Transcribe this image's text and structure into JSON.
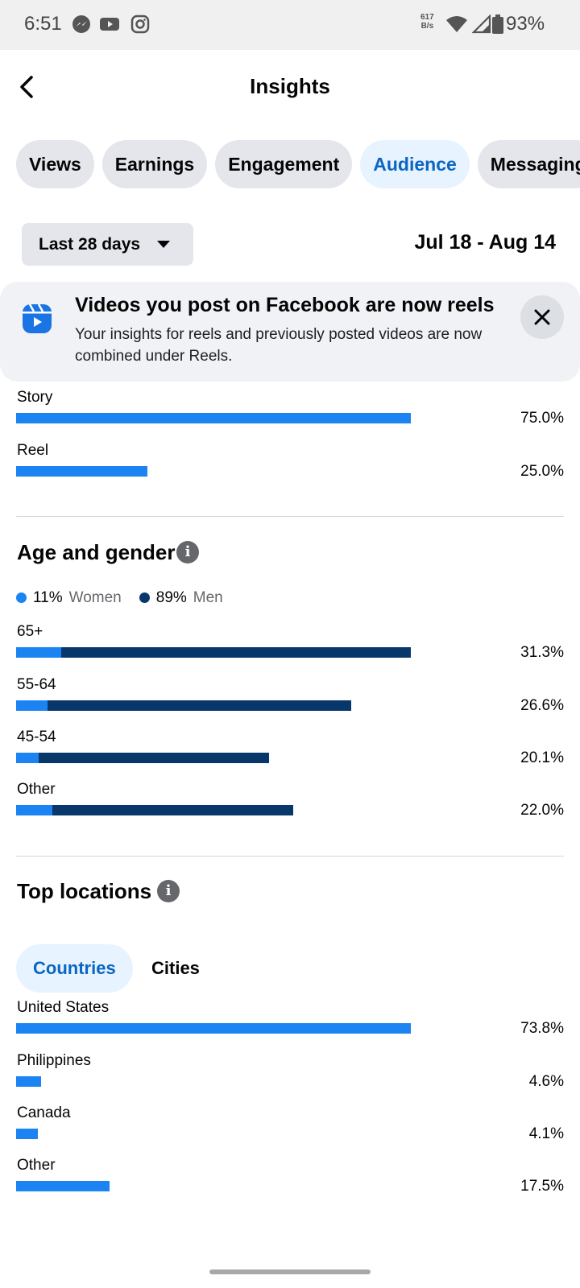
{
  "status_bar": {
    "time": "6:51",
    "net_speed_top": "617",
    "net_speed_bottom": "B/s",
    "battery": "93%"
  },
  "header": {
    "title": "Insights",
    "back_icon": "chevron-left-icon"
  },
  "tabs": [
    {
      "label": "Views",
      "active": false
    },
    {
      "label": "Earnings",
      "active": false
    },
    {
      "label": "Engagement",
      "active": false
    },
    {
      "label": "Audience",
      "active": true
    },
    {
      "label": "Messaging",
      "active": false
    }
  ],
  "date_filter": {
    "range_label": "Last 28 days",
    "date_range": "Jul 18 - Aug 14"
  },
  "banner": {
    "title": "Videos you post on Facebook are now reels",
    "text": "Your insights for reels and previously posted videos are now combined under Reels."
  },
  "content_type": [
    {
      "label": "Story",
      "value": "75.0%",
      "fraction": 0.75
    },
    {
      "label": "Reel",
      "value": "25.0%",
      "fraction": 0.25
    }
  ],
  "age_gender": {
    "title": "Age and gender",
    "legend": [
      {
        "pct": "11%",
        "label": "Women",
        "color": "#1b84f2"
      },
      {
        "pct": "89%",
        "label": "Men",
        "color": "#08386b"
      }
    ],
    "rows": [
      {
        "label": "65+",
        "value": "31.3%",
        "total": 0.313,
        "women": 0.036
      },
      {
        "label": "55-64",
        "value": "26.6%",
        "total": 0.266,
        "women": 0.025
      },
      {
        "label": "45-54",
        "value": "20.1%",
        "total": 0.201,
        "women": 0.018
      },
      {
        "label": "Other",
        "value": "22.0%",
        "total": 0.22,
        "women": 0.029
      }
    ]
  },
  "top_locations": {
    "title": "Top locations",
    "tabs": [
      {
        "label": "Countries",
        "active": true
      },
      {
        "label": "Cities",
        "active": false
      }
    ],
    "rows": [
      {
        "label": "United States",
        "value": "73.8%",
        "fraction": 0.738
      },
      {
        "label": "Philippines",
        "value": "4.6%",
        "fraction": 0.046
      },
      {
        "label": "Canada",
        "value": "4.1%",
        "fraction": 0.041
      },
      {
        "label": "Other",
        "value": "17.5%",
        "fraction": 0.175
      }
    ]
  },
  "colors": {
    "accent": "#0a66c2",
    "bar_primary": "#1b84f2",
    "bar_men": "#08386b"
  }
}
